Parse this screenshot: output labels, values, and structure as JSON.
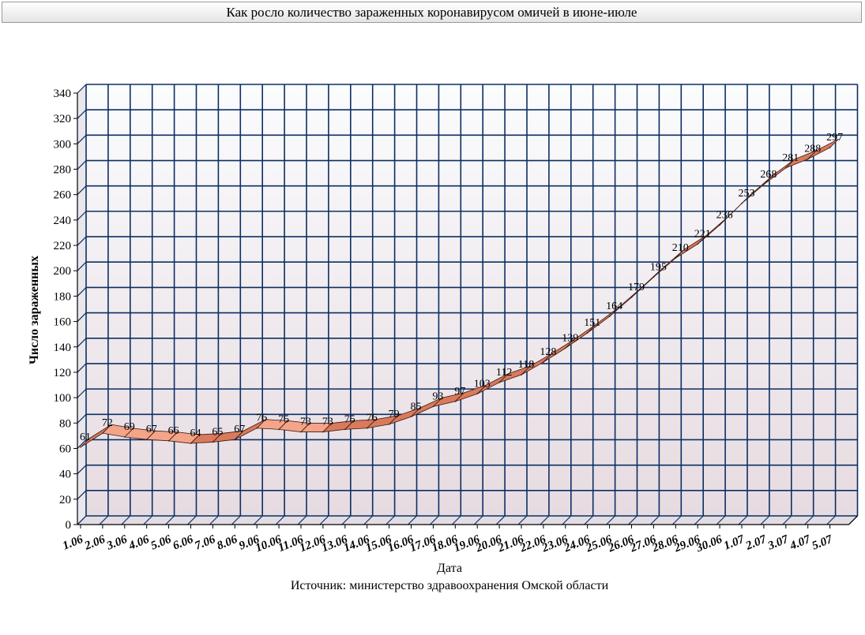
{
  "chart_data": {
    "type": "area",
    "title": "Как росло количество зараженных коронавирусом омичей в июне-июле",
    "xlabel": "Дата",
    "ylabel": "Число зараженных",
    "source": "Источник: министерство здравоохранения Омской области",
    "ylim": [
      0,
      340
    ],
    "yticks": [
      0,
      20,
      40,
      60,
      80,
      100,
      120,
      140,
      160,
      180,
      200,
      220,
      240,
      260,
      280,
      300,
      320,
      340
    ],
    "grid": true,
    "categories": [
      "1.06",
      "2.06",
      "3.06",
      "4.06",
      "5.06",
      "6.06",
      "7.06",
      "8.06",
      "9.06",
      "10.06",
      "11.06",
      "12.06",
      "13.06",
      "14.06",
      "15.06",
      "16.06",
      "17.06",
      "18.06",
      "19.06",
      "20.06",
      "21.06",
      "22.06",
      "23.06",
      "24.06",
      "25.06",
      "26.06",
      "27.06",
      "28.06",
      "29.06",
      "30.06",
      "1.07",
      "2.07",
      "3.07",
      "4.07",
      "5.07"
    ],
    "values": [
      61,
      72,
      69,
      67,
      66,
      64,
      65,
      67,
      76,
      75,
      73,
      73,
      75,
      76,
      79,
      85,
      93,
      97,
      103,
      112,
      118,
      128,
      139,
      151,
      164,
      179,
      195,
      210,
      221,
      236,
      253,
      268,
      281,
      288,
      297
    ],
    "value_labels": [
      "61",
      "72",
      "69",
      "67",
      "66",
      "64",
      "65",
      "67",
      "76",
      "75",
      "73",
      "73",
      "75",
      "76",
      "79",
      "85",
      "93",
      "97",
      "103",
      "112",
      "118",
      "128",
      "139",
      "151",
      "164",
      "179",
      "195",
      "210",
      "221",
      "236",
      "253",
      "268",
      "281",
      "288",
      "297"
    ],
    "colors": {
      "grid": "#0c2f63",
      "ribbon_top": "#f4a488",
      "ribbon_front": "#d97a5c",
      "ribbon_stroke": "#3a1a10",
      "wall_top": "#fbfcfe",
      "wall_bottom": "#e6dbe0"
    }
  }
}
